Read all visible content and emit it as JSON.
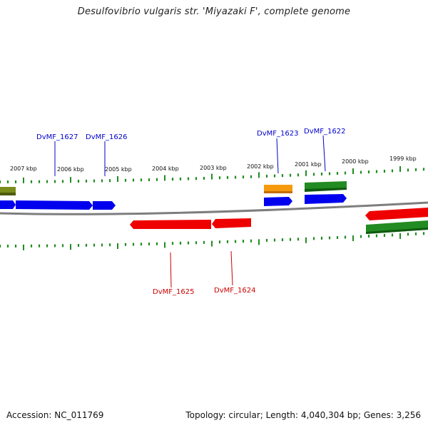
{
  "title": "Desulfovibrio vulgaris str. 'Miyazaki F', complete genome",
  "footer": {
    "accession": "Accession: NC_011769",
    "summary": "Topology: circular; Length: 4,040,304 bp; Genes: 3,256"
  },
  "scale_labels": [
    "2007 kbp",
    "2006 kbp",
    "2005 kbp",
    "2004 kbp",
    "2003 kbp",
    "2002 kbp",
    "2001 kbp",
    "2000 kbp",
    "1999 kbp"
  ],
  "genes": {
    "DvMF_1627": {
      "label": "DvMF_1627",
      "strand": "forward",
      "color": "#0000ee"
    },
    "DvMF_1626": {
      "label": "DvMF_1626",
      "strand": "forward",
      "color": "#0000ee"
    },
    "DvMF_1625": {
      "label": "DvMF_1625",
      "strand": "reverse",
      "color": "#ee0000"
    },
    "DvMF_1624": {
      "label": "DvMF_1624",
      "strand": "reverse",
      "color": "#ee0000"
    },
    "DvMF_1623": {
      "label": "DvMF_1623",
      "strand": "forward",
      "color": "#0000ee"
    },
    "DvMF_1622": {
      "label": "DvMF_1622",
      "strand": "forward",
      "color": "#0000ee"
    }
  },
  "colors": {
    "cds_forward": "#0000ee",
    "cds_reverse": "#ee0000",
    "gene_track": "#228b22",
    "rna_feature": "#ff9900",
    "backbone": "#808080",
    "ticks": "#228b22"
  }
}
